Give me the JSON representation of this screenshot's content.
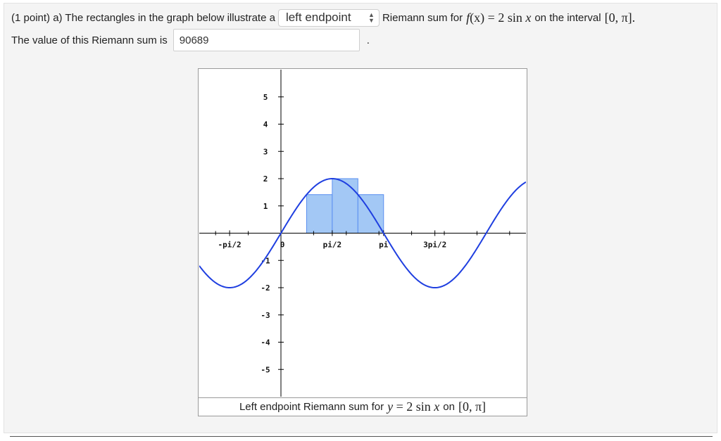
{
  "problem": {
    "intro": "(1 point) a) The rectangles in the graph below illustrate a",
    "select_value": "left endpoint",
    "after_select": "Riemann sum for",
    "func_f": "f",
    "func_x": "(x)",
    "func_eq": " = 2 sin ",
    "func_var": "x",
    "on_interval": "on the interval",
    "interval": "[0, π].",
    "value_text": "The value of this Riemann sum is",
    "answer_value": "90689",
    "period": "."
  },
  "caption": {
    "prefix": "Left endpoint Riemann sum for",
    "y": "y",
    "eq": " = 2 sin ",
    "var": "x",
    "on": "on",
    "interval": "[0, π]"
  },
  "chart_data": {
    "type": "line",
    "function": "2*sin(x)",
    "xlim": [
      -2.5,
      7.5
    ],
    "ylim": [
      -6,
      6
    ],
    "x_ticks": [
      {
        "label": "-pi/2",
        "value": -1.5708
      },
      {
        "label": "0",
        "value": 0
      },
      {
        "label": "pi/2",
        "value": 1.5708
      },
      {
        "label": "pi",
        "value": 3.1416
      },
      {
        "label": "3pi/2",
        "value": 4.7124
      }
    ],
    "y_ticks": [
      {
        "label": "5",
        "value": 5
      },
      {
        "label": "4",
        "value": 4
      },
      {
        "label": "3",
        "value": 3
      },
      {
        "label": "2",
        "value": 2
      },
      {
        "label": "1",
        "value": 1
      },
      {
        "label": "-1",
        "value": -1
      },
      {
        "label": "-2",
        "value": -2
      },
      {
        "label": "-3",
        "value": -3
      },
      {
        "label": "-4",
        "value": -4
      },
      {
        "label": "-5",
        "value": -5
      }
    ],
    "rectangles": [
      {
        "x0": 0,
        "x1": 0.7854,
        "height": 0
      },
      {
        "x0": 0.7854,
        "x1": 1.5708,
        "height": 1.4142
      },
      {
        "x0": 1.5708,
        "x1": 2.3562,
        "height": 2
      },
      {
        "x0": 2.3562,
        "x1": 3.1416,
        "height": 1.4142
      }
    ],
    "colors": {
      "curve": "#1f3fe0",
      "rect_fill": "#a3c8f5",
      "rect_stroke": "#5a8ff0",
      "axis": "#000000"
    }
  }
}
